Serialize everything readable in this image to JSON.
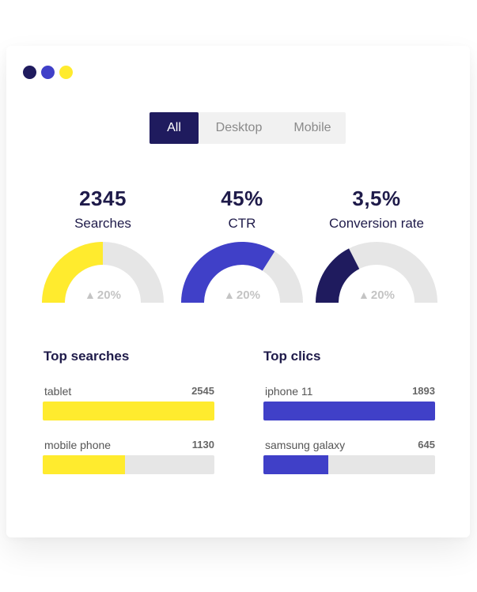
{
  "window": {
    "dot_colors": [
      "#1f1b5e",
      "#4040c8",
      "#ffeb2e"
    ]
  },
  "tabs": [
    {
      "label": "All",
      "active": true
    },
    {
      "label": "Desktop",
      "active": false
    },
    {
      "label": "Mobile",
      "active": false
    }
  ],
  "stats": [
    {
      "value": "2345",
      "label": "Searches",
      "gauge_fraction": 0.5,
      "color": "#ffeb2e",
      "change": "20%"
    },
    {
      "value": "45%",
      "label": "CTR",
      "gauge_fraction": 0.68,
      "color": "#4040c8",
      "change": "20%"
    },
    {
      "value": "3,5%",
      "label": "Conversion rate",
      "gauge_fraction": 0.35,
      "color": "#1f1b5e",
      "change": "20%"
    }
  ],
  "top_searches": {
    "title": "Top searches",
    "items": [
      {
        "label": "tablet",
        "value": "2545",
        "fraction": 1.0
      },
      {
        "label": "mobile phone",
        "value": "1130",
        "fraction": 0.48
      }
    ],
    "color": "#ffeb2e"
  },
  "top_clics": {
    "title": "Top clics",
    "items": [
      {
        "label": "iphone 11",
        "value": "1893",
        "fraction": 1.0
      },
      {
        "label": "samsung galaxy",
        "value": "645",
        "fraction": 0.38
      }
    ],
    "color": "#4040c8"
  },
  "colors": {
    "track": "#e6e6e6",
    "dark_text": "#1f1b4a"
  }
}
